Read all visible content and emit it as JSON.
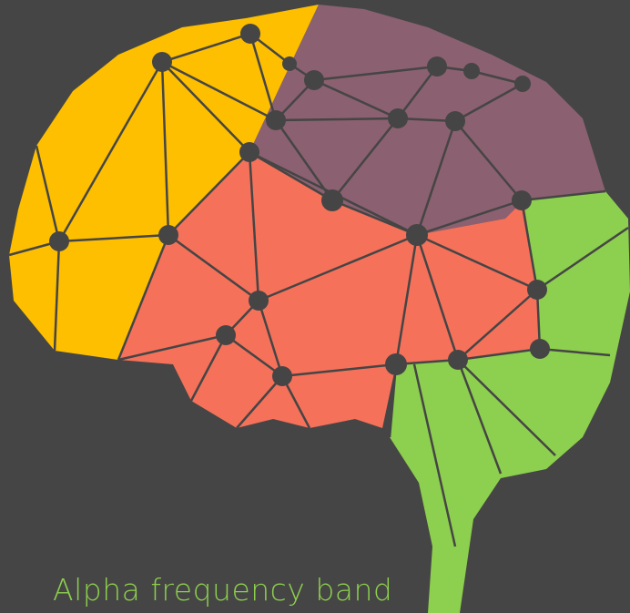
{
  "caption": "Alpha frequency band"
}
